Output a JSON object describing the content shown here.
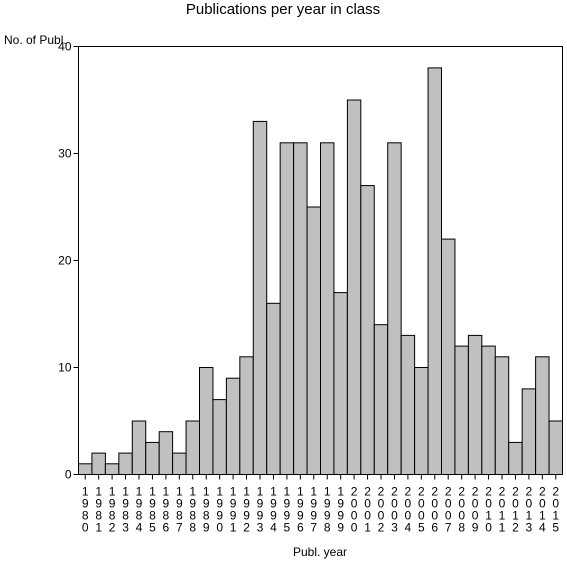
{
  "chart_data": {
    "type": "bar",
    "title": "Publications per year in class",
    "ylabel": "No. of Publ.",
    "xlabel": "Publ. year",
    "ylim": [
      0,
      40
    ],
    "yticks": [
      0,
      10,
      20,
      30,
      40
    ],
    "grid": false,
    "categories": [
      "1980",
      "1981",
      "1982",
      "1983",
      "1984",
      "1985",
      "1986",
      "1987",
      "1988",
      "1989",
      "1990",
      "1991",
      "1992",
      "1993",
      "1994",
      "1995",
      "1996",
      "1997",
      "1998",
      "1999",
      "2000",
      "2001",
      "2002",
      "2003",
      "2004",
      "2005",
      "2006",
      "2007",
      "2008",
      "2009",
      "2010",
      "2011",
      "2012",
      "2013",
      "2014",
      "2015"
    ],
    "values": [
      1,
      2,
      1,
      2,
      5,
      3,
      4,
      2,
      5,
      10,
      7,
      9,
      11,
      33,
      16,
      31,
      31,
      25,
      31,
      17,
      35,
      27,
      14,
      31,
      13,
      10,
      38,
      22,
      12,
      13,
      12,
      11,
      3,
      8,
      11,
      5
    ],
    "colors": {
      "bar_fill": "#c0c0c0",
      "bar_stroke": "#000000"
    }
  }
}
